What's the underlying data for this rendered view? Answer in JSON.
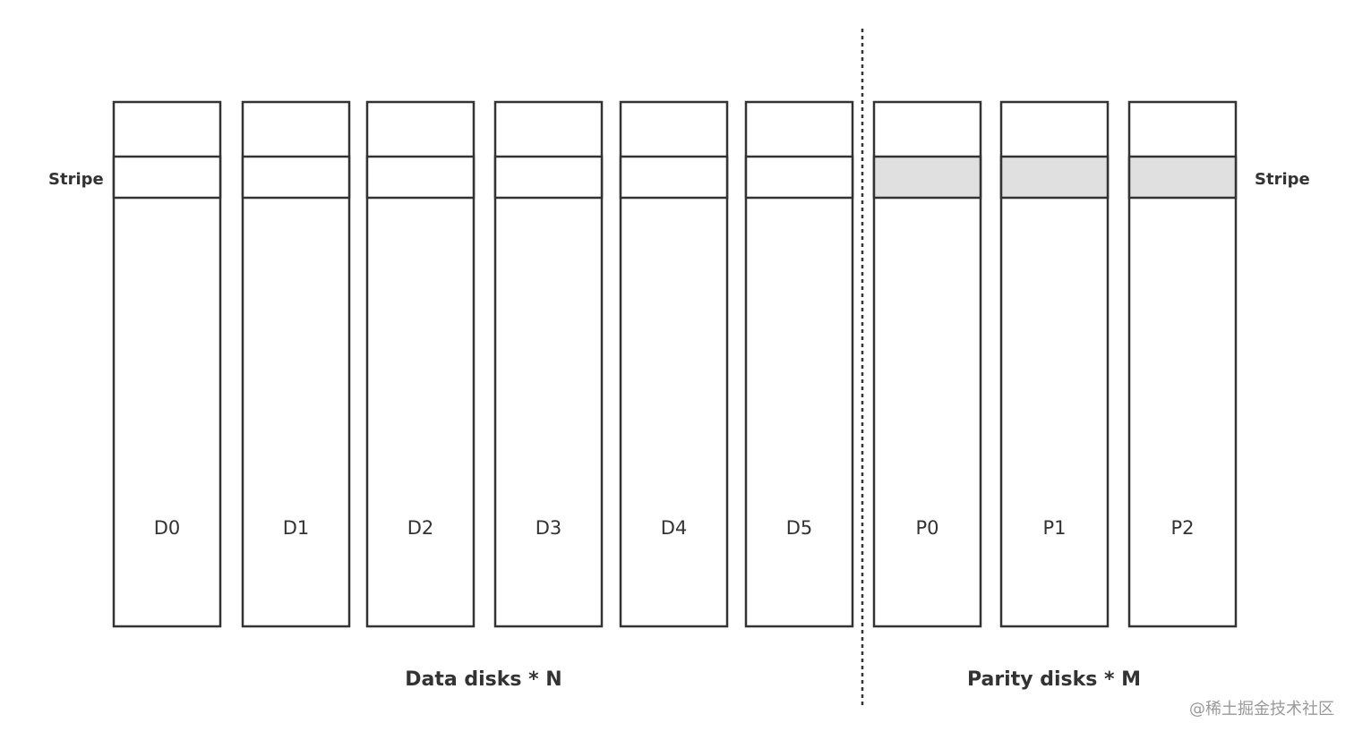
{
  "disks": [
    {
      "label": "D0",
      "parity": false
    },
    {
      "label": "D1",
      "parity": false
    },
    {
      "label": "D2",
      "parity": false
    },
    {
      "label": "D3",
      "parity": false
    },
    {
      "label": "D4",
      "parity": false
    },
    {
      "label": "D5",
      "parity": false
    },
    {
      "label": "P0",
      "parity": true
    },
    {
      "label": "P1",
      "parity": true
    },
    {
      "label": "P2",
      "parity": true
    }
  ],
  "stripe_left": "Stripe",
  "stripe_right": "Stripe",
  "data_group": "Data disks * N",
  "parity_group": "Parity disks * M",
  "watermark": "@稀土掘金技术社区"
}
